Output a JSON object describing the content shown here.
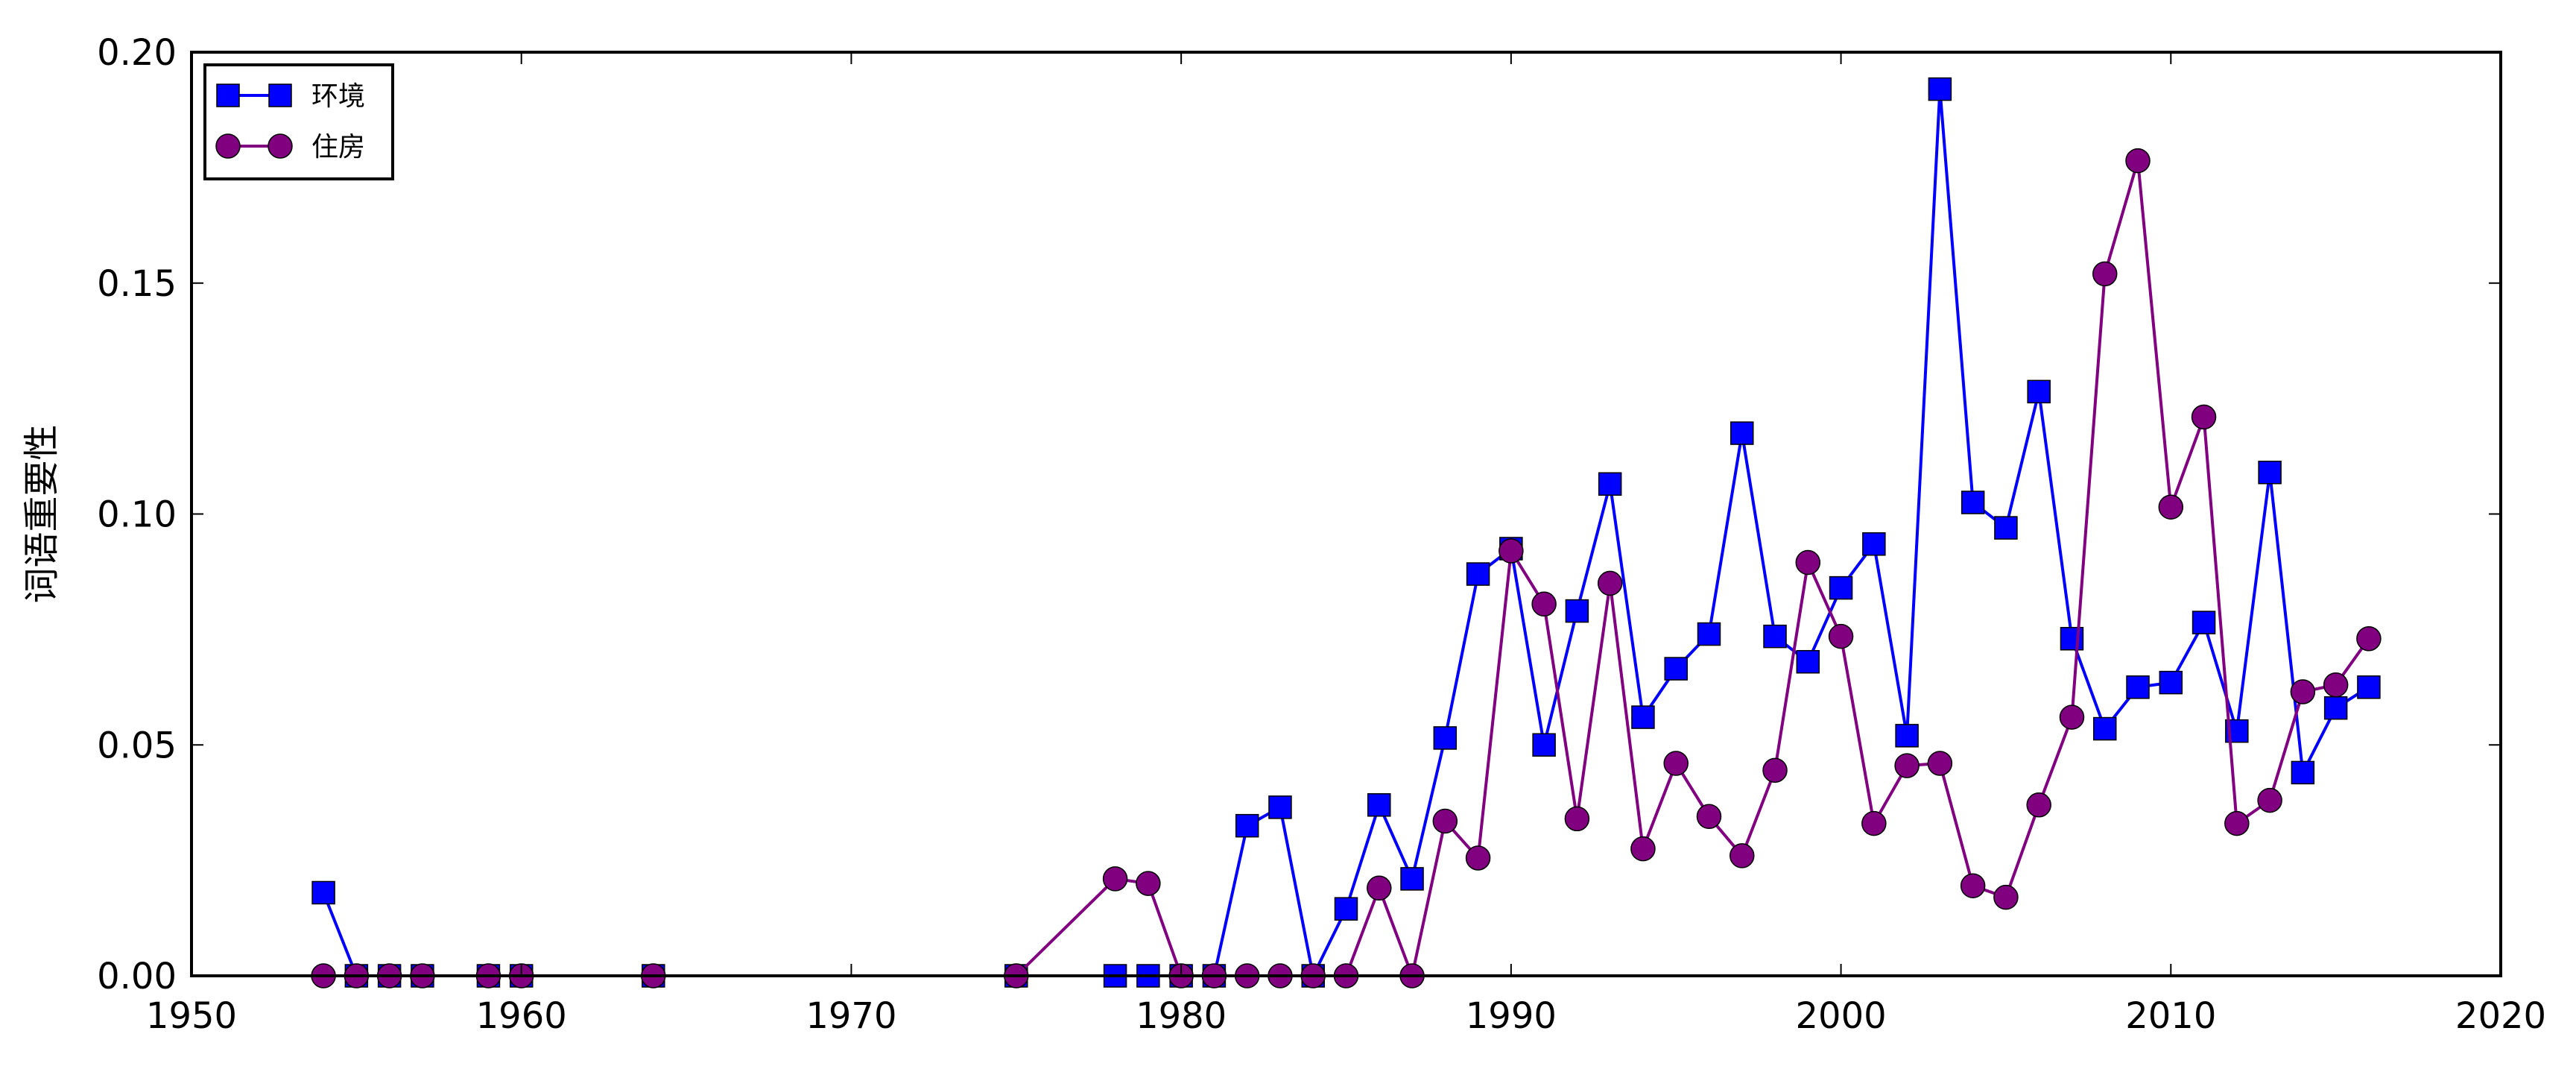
{
  "chart_data": {
    "type": "line",
    "title": "",
    "xlabel": "",
    "ylabel": "词语重要性",
    "xlim": [
      1950,
      2020
    ],
    "ylim": [
      0,
      0.2
    ],
    "x_ticks": [
      1950,
      1960,
      1970,
      1980,
      1990,
      2000,
      2010,
      2020
    ],
    "y_ticks": [
      0.0,
      0.05,
      0.1,
      0.15,
      0.2
    ],
    "x_tick_labels": [
      "1950",
      "1960",
      "1970",
      "1980",
      "1990",
      "2000",
      "2010",
      "2020"
    ],
    "y_tick_labels": [
      "0.00",
      "0.05",
      "0.10",
      "0.15",
      "0.20"
    ],
    "grid": false,
    "legend_position": "top-left",
    "series": [
      {
        "name": "环境",
        "color": "#0000ff",
        "marker": "square",
        "points": [
          [
            1954,
            0.018
          ],
          [
            1955,
            0.0
          ],
          [
            1956,
            0.0
          ],
          [
            1957,
            0.0
          ],
          [
            1959,
            0.0
          ],
          [
            1960,
            0.0
          ],
          [
            1964,
            0.0
          ],
          [
            1975,
            0.0
          ],
          [
            1978,
            0.0
          ],
          [
            1979,
            0.0
          ],
          [
            1980,
            0.0
          ],
          [
            1981,
            0.0
          ],
          [
            1982,
            0.0325
          ],
          [
            1983,
            0.0365
          ],
          [
            1984,
            0.0
          ],
          [
            1985,
            0.0145
          ],
          [
            1986,
            0.037
          ],
          [
            1987,
            0.021
          ],
          [
            1988,
            0.0515
          ],
          [
            1989,
            0.087
          ],
          [
            1990,
            0.0925
          ],
          [
            1991,
            0.05
          ],
          [
            1992,
            0.079
          ],
          [
            1993,
            0.1065
          ],
          [
            1994,
            0.056
          ],
          [
            1995,
            0.0665
          ],
          [
            1996,
            0.074
          ],
          [
            1997,
            0.1175
          ],
          [
            1998,
            0.0735
          ],
          [
            1999,
            0.068
          ],
          [
            2000,
            0.084
          ],
          [
            2001,
            0.0935
          ],
          [
            2002,
            0.052
          ],
          [
            2003,
            0.192
          ],
          [
            2004,
            0.1025
          ],
          [
            2005,
            0.097
          ],
          [
            2006,
            0.1265
          ],
          [
            2007,
            0.073
          ],
          [
            2008,
            0.0535
          ],
          [
            2009,
            0.0625
          ],
          [
            2010,
            0.0635
          ],
          [
            2011,
            0.0765
          ],
          [
            2012,
            0.053
          ],
          [
            2013,
            0.109
          ],
          [
            2014,
            0.044
          ],
          [
            2015,
            0.058
          ],
          [
            2016,
            0.0625
          ]
        ]
      },
      {
        "name": "住房",
        "color": "#800080",
        "marker": "circle",
        "points": [
          [
            1954,
            0.0
          ],
          [
            1955,
            0.0
          ],
          [
            1956,
            0.0
          ],
          [
            1957,
            0.0
          ],
          [
            1959,
            0.0
          ],
          [
            1960,
            0.0
          ],
          [
            1964,
            0.0
          ],
          [
            1975,
            0.0
          ],
          [
            1978,
            0.021
          ],
          [
            1979,
            0.02
          ],
          [
            1980,
            0.0
          ],
          [
            1981,
            0.0
          ],
          [
            1982,
            0.0
          ],
          [
            1983,
            0.0
          ],
          [
            1984,
            0.0
          ],
          [
            1985,
            0.0
          ],
          [
            1986,
            0.019
          ],
          [
            1987,
            0.0
          ],
          [
            1988,
            0.0335
          ],
          [
            1989,
            0.0255
          ],
          [
            1990,
            0.092
          ],
          [
            1991,
            0.0805
          ],
          [
            1992,
            0.034
          ],
          [
            1993,
            0.085
          ],
          [
            1994,
            0.0275
          ],
          [
            1995,
            0.046
          ],
          [
            1996,
            0.0345
          ],
          [
            1997,
            0.026
          ],
          [
            1998,
            0.0445
          ],
          [
            1999,
            0.0895
          ],
          [
            2000,
            0.0735
          ],
          [
            2001,
            0.033
          ],
          [
            2002,
            0.0455
          ],
          [
            2003,
            0.046
          ],
          [
            2004,
            0.0195
          ],
          [
            2005,
            0.017
          ],
          [
            2006,
            0.037
          ],
          [
            2007,
            0.056
          ],
          [
            2008,
            0.152
          ],
          [
            2009,
            0.1765
          ],
          [
            2010,
            0.1015
          ],
          [
            2011,
            0.121
          ],
          [
            2012,
            0.033
          ],
          [
            2013,
            0.038
          ],
          [
            2014,
            0.0615
          ],
          [
            2015,
            0.063
          ],
          [
            2016,
            0.073
          ]
        ]
      }
    ]
  }
}
